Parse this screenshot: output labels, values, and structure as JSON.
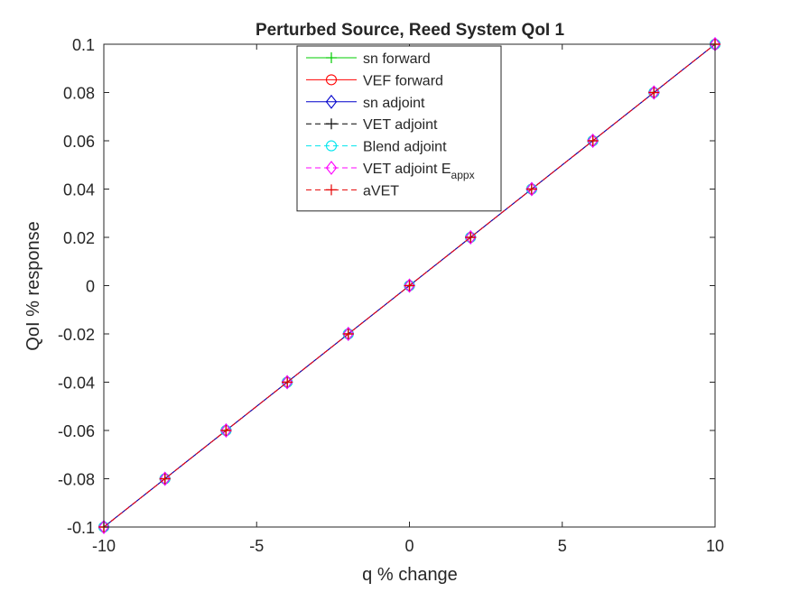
{
  "chart_data": {
    "type": "line",
    "title": "Perturbed Source, Reed System QoI 1",
    "xlabel": "q % change",
    "ylabel": "QoI % response",
    "xlim": [
      -10,
      10
    ],
    "ylim": [
      -0.1,
      0.1
    ],
    "xticks": [
      -10,
      -5,
      0,
      5,
      10
    ],
    "xtick_labels": [
      "-10",
      "-5",
      "0",
      "5",
      "10"
    ],
    "yticks": [
      -0.1,
      -0.08,
      -0.06,
      -0.04,
      -0.02,
      0,
      0.02,
      0.04,
      0.06,
      0.08,
      0.1
    ],
    "ytick_labels": [
      "-0.1",
      "-0.08",
      "-0.06",
      "-0.04",
      "-0.02",
      "0",
      "0.02",
      "0.04",
      "0.06",
      "0.08",
      "0.1"
    ],
    "grid": false,
    "legend_position": "top-center",
    "x": [
      -10,
      -8,
      -6,
      -4,
      -2,
      0,
      2,
      4,
      6,
      8,
      10
    ],
    "series": [
      {
        "name": "sn forward",
        "legend_main": "sn forward",
        "legend_sub": "",
        "color": "#00cc00",
        "marker": "plus",
        "dash": "solid",
        "values": [
          -0.1,
          -0.08,
          -0.06,
          -0.04,
          -0.02,
          0,
          0.02,
          0.04,
          0.06,
          0.08,
          0.1
        ]
      },
      {
        "name": "VEF forward",
        "legend_main": "VEF forward",
        "legend_sub": "",
        "color": "#ff0000",
        "marker": "circle",
        "dash": "solid",
        "values": [
          -0.1,
          -0.08,
          -0.06,
          -0.04,
          -0.02,
          0,
          0.02,
          0.04,
          0.06,
          0.08,
          0.1
        ]
      },
      {
        "name": "sn adjoint",
        "legend_main": "sn adjoint",
        "legend_sub": "",
        "color": "#0000cc",
        "marker": "diamond",
        "dash": "solid",
        "values": [
          -0.1,
          -0.08,
          -0.06,
          -0.04,
          -0.02,
          0,
          0.02,
          0.04,
          0.06,
          0.08,
          0.1
        ]
      },
      {
        "name": "VET adjoint",
        "legend_main": "VET adjoint",
        "legend_sub": "",
        "color": "#000000",
        "marker": "plus",
        "dash": "dashed",
        "values": [
          -0.1,
          -0.08,
          -0.06,
          -0.04,
          -0.02,
          0,
          0.02,
          0.04,
          0.06,
          0.08,
          0.1
        ]
      },
      {
        "name": "Blend adjoint",
        "legend_main": "Blend adjoint",
        "legend_sub": "",
        "color": "#00e5ee",
        "marker": "circle",
        "dash": "dashed",
        "values": [
          -0.1,
          -0.08,
          -0.06,
          -0.04,
          -0.02,
          0,
          0.02,
          0.04,
          0.06,
          0.08,
          0.1
        ]
      },
      {
        "name": "VET adjoint Eappx",
        "legend_main": "VET adjoint E",
        "legend_sub": "appx",
        "color": "#ff00ff",
        "marker": "diamond",
        "dash": "dashed",
        "values": [
          -0.1,
          -0.08,
          -0.06,
          -0.04,
          -0.02,
          0,
          0.02,
          0.04,
          0.06,
          0.08,
          0.1
        ]
      },
      {
        "name": "aVET",
        "legend_main": "aVET",
        "legend_sub": "",
        "color": "#e60000",
        "marker": "plus",
        "dash": "dashed",
        "values": [
          -0.1,
          -0.08,
          -0.06,
          -0.04,
          -0.02,
          0,
          0.02,
          0.04,
          0.06,
          0.08,
          0.1
        ]
      }
    ]
  }
}
